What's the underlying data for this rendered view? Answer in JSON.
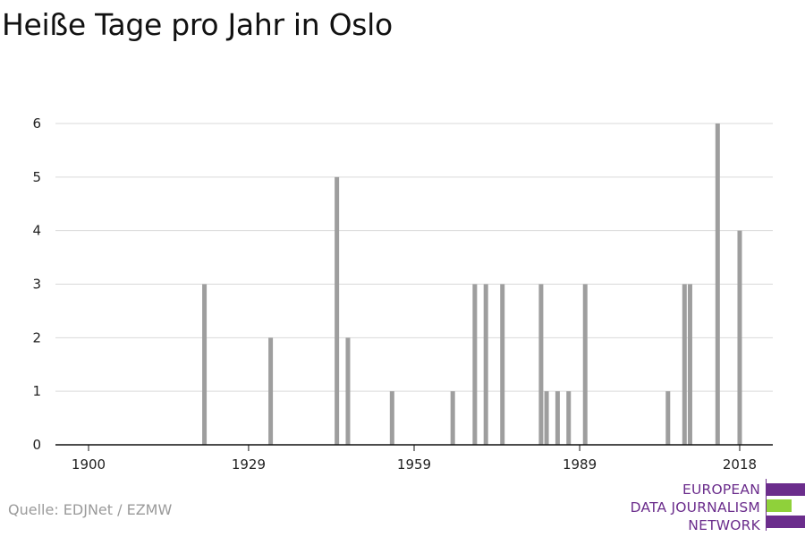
{
  "header": {
    "title": "Heiße Tage pro Jahr in Oslo"
  },
  "footer": {
    "source": "Quelle: EDJNet / EZMW"
  },
  "logo": {
    "lines": [
      "EUROPEAN",
      "DATA JOURNALISM",
      "NETWORK"
    ],
    "colors": {
      "purple": "#6b2d8c",
      "green": "#8fd13a"
    }
  },
  "colors": {
    "bar": "#9e9e9e",
    "grid": "#d9d9d9",
    "axis": "#111111"
  },
  "chart_data": {
    "type": "bar",
    "title": "Heiße Tage pro Jahr in Oslo",
    "xlabel": "",
    "ylabel": "",
    "xlim": [
      1894,
      2024
    ],
    "ylim": [
      0,
      6
    ],
    "x_ticks": [
      1900,
      1929,
      1959,
      1989,
      2018
    ],
    "y_ticks": [
      0,
      1,
      2,
      3,
      4,
      5,
      6
    ],
    "grid": true,
    "x": [
      1921,
      1933,
      1945,
      1947,
      1955,
      1966,
      1970,
      1972,
      1975,
      1982,
      1983,
      1985,
      1987,
      1990,
      2005,
      2008,
      2009,
      2014,
      2018
    ],
    "values": [
      3,
      2,
      5,
      2,
      1,
      1,
      3,
      3,
      3,
      3,
      1,
      1,
      1,
      3,
      1,
      3,
      3,
      6,
      4
    ]
  }
}
